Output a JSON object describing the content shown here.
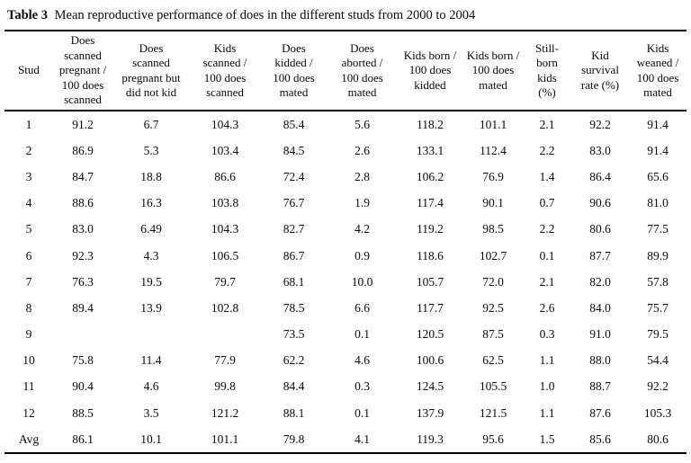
{
  "caption": {
    "label": "Table 3",
    "text": "Mean reproductive performance of does in the different studs from 2000 to 2004"
  },
  "table": {
    "columns": [
      {
        "header": "Stud"
      },
      {
        "header": "Does\nscanned\npregnant /\n100 does\nscanned"
      },
      {
        "header": "Does\nscanned\npregnant but\ndid not kid"
      },
      {
        "header": "Kids\nscanned /\n100 does\nscanned"
      },
      {
        "header": "Does\nkidded /\n100 does\nmated"
      },
      {
        "header": "Does\naborted /\n100 does\nmated"
      },
      {
        "header": "Kids born /\n100 does\nkidded"
      },
      {
        "header": "Kids born /\n100 does\nmated"
      },
      {
        "header": "Still-\nborn\nkids\n(%)"
      },
      {
        "header": "Kid\nsurvival\nrate (%)"
      },
      {
        "header": "Kids\nweaned /\n100 does\nmated"
      }
    ],
    "rows": [
      [
        "1",
        "91.2",
        "6.7",
        "104.3",
        "85.4",
        "5.6",
        "118.2",
        "101.1",
        "2.1",
        "92.2",
        "91.4"
      ],
      [
        "2",
        "86.9",
        "5.3",
        "103.4",
        "84.5",
        "2.6",
        "133.1",
        "112.4",
        "2.2",
        "83.0",
        "91.4"
      ],
      [
        "3",
        "84.7",
        "18.8",
        "86.6",
        "72.4",
        "2.8",
        "106.2",
        "76.9",
        "1.4",
        "86.4",
        "65.6"
      ],
      [
        "4",
        "88.6",
        "16.3",
        "103.8",
        "76.7",
        "1.9",
        "117.4",
        "90.1",
        "0.7",
        "90.6",
        "81.0"
      ],
      [
        "5",
        "83.0",
        "6.49",
        "104.3",
        "82.7",
        "4.2",
        "119.2",
        "98.5",
        "2.2",
        "80.6",
        "77.5"
      ],
      [
        "6",
        "92.3",
        "4.3",
        "106.5",
        "86.7",
        "0.9",
        "118.6",
        "102.7",
        "0.1",
        "87.7",
        "89.9"
      ],
      [
        "7",
        "76.3",
        "19.5",
        "79.7",
        "68.1",
        "10.0",
        "105.7",
        "72.0",
        "2.1",
        "82.0",
        "57.8"
      ],
      [
        "8",
        "89.4",
        "13.9",
        "102.8",
        "78.5",
        "6.6",
        "117.7",
        "92.5",
        "2.6",
        "84.0",
        "75.7"
      ],
      [
        "9",
        "",
        "",
        "",
        "73.5",
        "0.1",
        "120.5",
        "87.5",
        "0.3",
        "91.0",
        "79.5"
      ],
      [
        "10",
        "75.8",
        "11.4",
        "77.9",
        "62.2",
        "4.6",
        "100.6",
        "62.5",
        "1.1",
        "88.0",
        "54.4"
      ],
      [
        "11",
        "90.4",
        "4.6",
        "99.8",
        "84.4",
        "0.3",
        "124.5",
        "105.5",
        "1.0",
        "88.7",
        "92.2"
      ],
      [
        "12",
        "88.5",
        "3.5",
        "121.2",
        "88.1",
        "0.1",
        "137.9",
        "121.5",
        "1.1",
        "87.6",
        "105.3"
      ],
      [
        "Avg",
        "86.1",
        "10.1",
        "101.1",
        "79.8",
        "4.1",
        "119.3",
        "95.6",
        "1.5",
        "85.6",
        "80.6"
      ]
    ]
  }
}
